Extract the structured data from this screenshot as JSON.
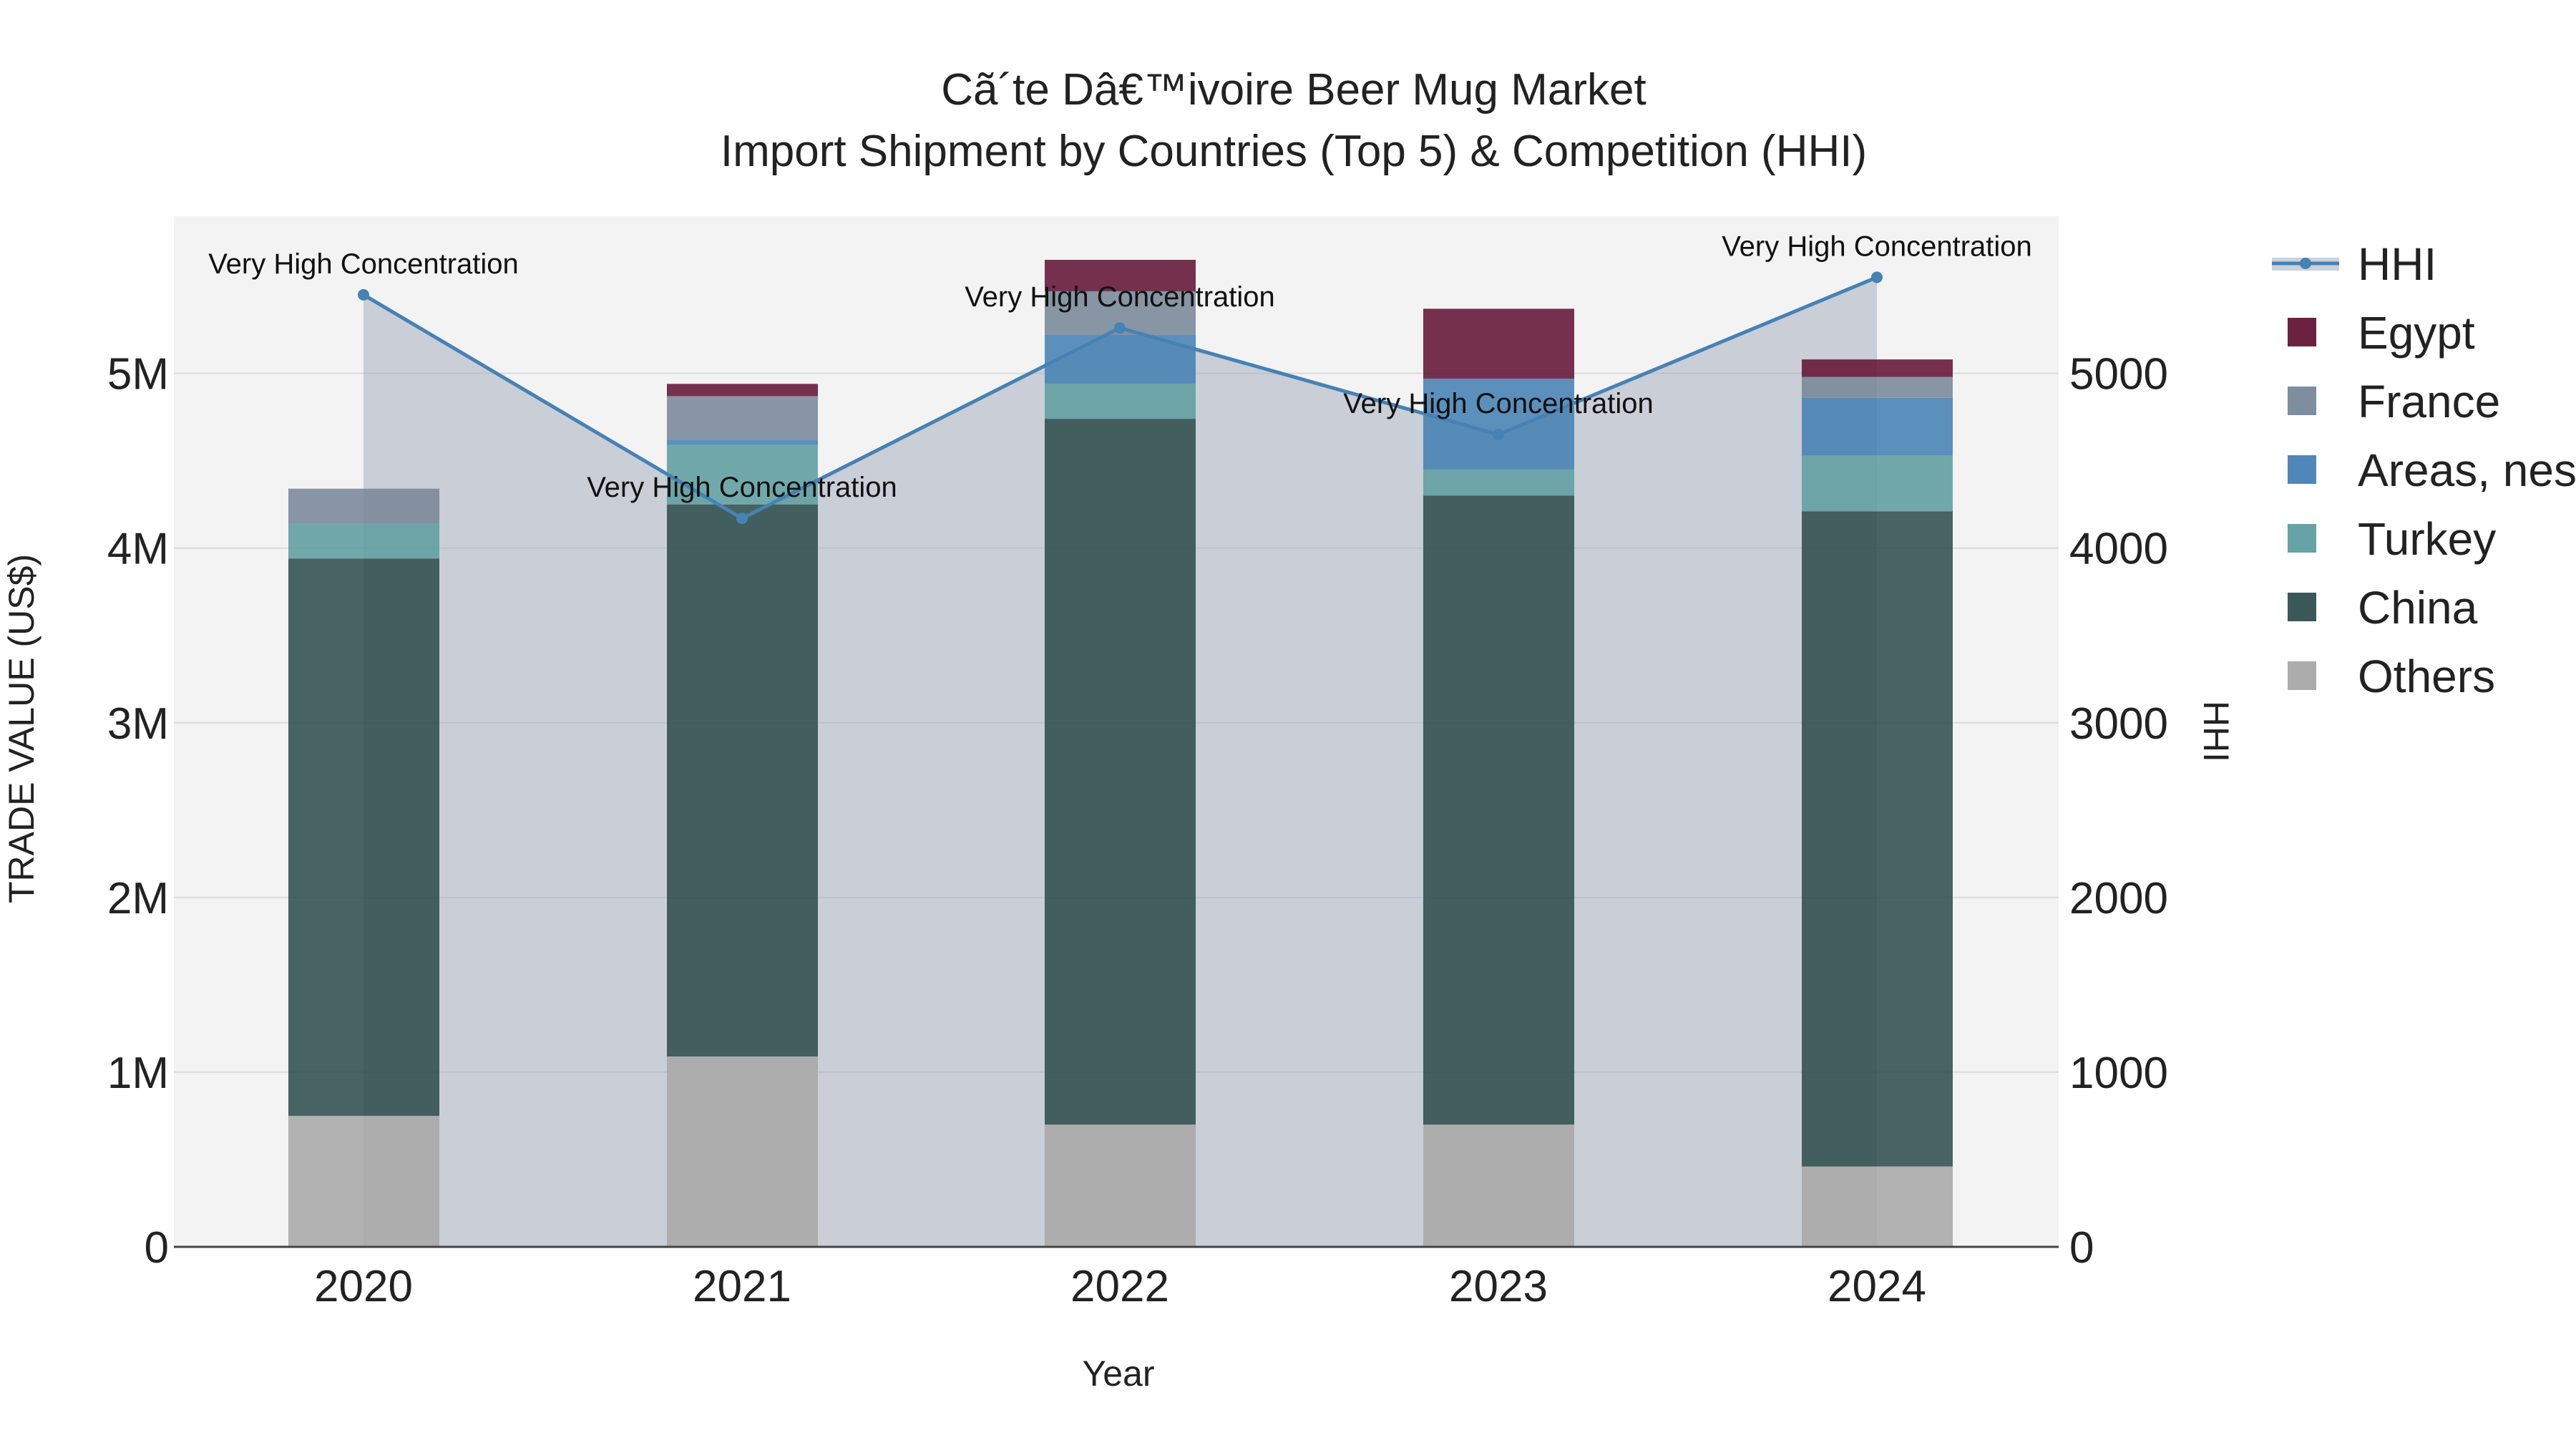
{
  "title": {
    "line1": "Cã´te Dâ€™ivoire Beer Mug Market",
    "line2": "Import Shipment by Countries (Top 5) & Competition (HHI)"
  },
  "chart_data": {
    "type": "bar",
    "stacked": true,
    "xlabel": "Year",
    "ylabel": "TRADE VALUE (US$)",
    "y2label": "HHI",
    "categories": [
      "2020",
      "2021",
      "2022",
      "2023",
      "2024"
    ],
    "ylim": [
      0,
      5900000
    ],
    "y2lim": [
      0,
      5900
    ],
    "y_ticks": [
      0,
      1000000,
      2000000,
      3000000,
      4000000,
      5000000
    ],
    "y_tick_labels": [
      "0",
      "1M",
      "2M",
      "3M",
      "4M",
      "5M"
    ],
    "y2_ticks": [
      0,
      1000,
      2000,
      3000,
      4000,
      5000
    ],
    "y2_tick_labels": [
      "0",
      "1000",
      "2000",
      "3000",
      "4000",
      "5000"
    ],
    "series": [
      {
        "name": "Others",
        "color": "#a8a8a8",
        "values": [
          750000,
          1090000,
          700000,
          700000,
          460000
        ]
      },
      {
        "name": "China",
        "color": "#2f4f4f",
        "values": [
          3190000,
          3160000,
          4040000,
          3600000,
          3750000
        ]
      },
      {
        "name": "Turkey",
        "color": "#5f9ea0",
        "values": [
          200000,
          340000,
          200000,
          150000,
          320000
        ]
      },
      {
        "name": "Areas, nes",
        "color": "#4682b4",
        "values": [
          0,
          30000,
          280000,
          520000,
          330000
        ]
      },
      {
        "name": "France",
        "color": "#778899",
        "values": [
          200000,
          250000,
          250000,
          0,
          120000
        ]
      },
      {
        "name": "Egypt",
        "color": "#631535",
        "values": [
          0,
          70000,
          180000,
          400000,
          100000
        ]
      }
    ],
    "hhi": {
      "name": "HHI",
      "color": "#4682b4",
      "values": [
        5450,
        4170,
        5260,
        4650,
        5550
      ],
      "annotations": [
        "Very High Concentration",
        "Very High Concentration",
        "Very High Concentration",
        "Very High Concentration",
        "Very High Concentration"
      ]
    },
    "legend": [
      "HHI",
      "Egypt",
      "France",
      "Areas, nes",
      "Turkey",
      "China",
      "Others"
    ],
    "legend_position": "right"
  }
}
